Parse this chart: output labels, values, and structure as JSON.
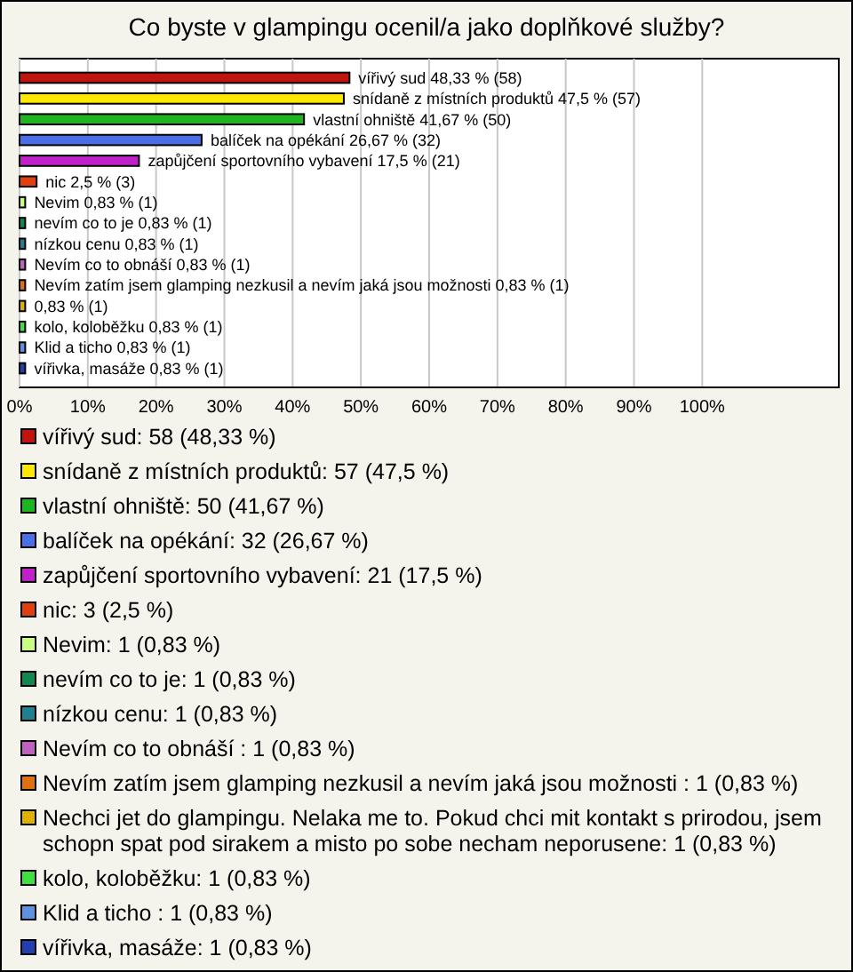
{
  "chart_data": {
    "type": "bar",
    "orientation": "horizontal",
    "stacked": true,
    "title": "Co byste v glampingu ocenil/a jako doplňkové služby?",
    "categories": [
      null,
      null,
      null,
      null,
      null,
      null,
      null,
      null,
      null,
      null,
      null,
      null,
      null,
      null,
      null
    ],
    "series": [
      {
        "name": "vířivý sud: 58 (48,33 %)",
        "color": "#c0150f",
        "values": [
          48.33,
          null,
          null,
          null,
          null,
          null,
          null,
          null,
          null,
          null,
          null,
          null,
          null,
          null,
          null
        ],
        "value_labels": [
          "vířivý sud 48,33 % (58)",
          null,
          null,
          null,
          null,
          null,
          null,
          null,
          null,
          null,
          null,
          null,
          null,
          null,
          null
        ]
      },
      {
        "name": "snídaně z místních produktů: 57 (47,5 %)",
        "color": "#ffe800",
        "values": [
          null,
          47.5,
          null,
          null,
          null,
          null,
          null,
          null,
          null,
          null,
          null,
          null,
          null,
          null,
          null
        ],
        "value_labels": [
          null,
          "snídaně z místních produktů 47,5 % (57)",
          null,
          null,
          null,
          null,
          null,
          null,
          null,
          null,
          null,
          null,
          null,
          null,
          null
        ]
      },
      {
        "name": "vlastní ohniště: 50 (41,67 %)",
        "color": "#1eb51e",
        "values": [
          null,
          null,
          41.67,
          null,
          null,
          null,
          null,
          null,
          null,
          null,
          null,
          null,
          null,
          null,
          null
        ],
        "value_labels": [
          null,
          null,
          "vlastní ohniště 41,67 % (50)",
          null,
          null,
          null,
          null,
          null,
          null,
          null,
          null,
          null,
          null,
          null,
          null
        ]
      },
      {
        "name": "balíček na opékání: 32 (26,67 %)",
        "color": "#4a6ee8",
        "values": [
          null,
          null,
          null,
          26.67,
          null,
          null,
          null,
          null,
          null,
          null,
          null,
          null,
          null,
          null,
          null
        ],
        "value_labels": [
          null,
          null,
          null,
          "balíček na opékání 26,67 % (32)",
          null,
          null,
          null,
          null,
          null,
          null,
          null,
          null,
          null,
          null,
          null
        ]
      },
      {
        "name": "zapůjčení sportovního vybavení: 21 (17,5 %)",
        "color": "#c020c8",
        "values": [
          null,
          null,
          null,
          null,
          17.5,
          null,
          null,
          null,
          null,
          null,
          null,
          null,
          null,
          null,
          null
        ],
        "value_labels": [
          null,
          null,
          null,
          null,
          "zapůjčení sportovního vybavení 17,5 % (21)",
          null,
          null,
          null,
          null,
          null,
          null,
          null,
          null,
          null,
          null
        ]
      },
      {
        "name": "nic: 3 (2,5 %)",
        "color": "#e04010",
        "values": [
          null,
          null,
          null,
          null,
          null,
          2.5,
          null,
          null,
          null,
          null,
          null,
          null,
          null,
          null,
          null
        ],
        "value_labels": [
          null,
          null,
          null,
          null,
          null,
          "nic 2,5 % (3)",
          null,
          null,
          null,
          null,
          null,
          null,
          null,
          null,
          null
        ]
      },
      {
        "name": "Nevim: 1 (0,83 %)",
        "color": "#c8ff80",
        "values": [
          null,
          null,
          null,
          null,
          null,
          null,
          0.83,
          null,
          null,
          null,
          null,
          null,
          null,
          null,
          null
        ],
        "value_labels": [
          null,
          null,
          null,
          null,
          null,
          null,
          "Nevim 0,83 % (1)",
          null,
          null,
          null,
          null,
          null,
          null,
          null,
          null
        ]
      },
      {
        "name": "nevím co to je: 1 (0,83 %)",
        "color": "#108850",
        "values": [
          null,
          null,
          null,
          null,
          null,
          null,
          null,
          0.83,
          null,
          null,
          null,
          null,
          null,
          null,
          null
        ],
        "value_labels": [
          null,
          null,
          null,
          null,
          null,
          null,
          null,
          "nevím co to je 0,83 % (1)",
          null,
          null,
          null,
          null,
          null,
          null,
          null
        ]
      },
      {
        "name": "nízkou cenu: 1 (0,83 %)",
        "color": "#208090",
        "values": [
          null,
          null,
          null,
          null,
          null,
          null,
          null,
          null,
          0.83,
          null,
          null,
          null,
          null,
          null,
          null
        ],
        "value_labels": [
          null,
          null,
          null,
          null,
          null,
          null,
          null,
          null,
          "nízkou cenu 0,83 % (1)",
          null,
          null,
          null,
          null,
          null,
          null
        ]
      },
      {
        "name": "Nevím co to obnáší : 1 (0,83 %)",
        "color": "#c060c0",
        "values": [
          null,
          null,
          null,
          null,
          null,
          null,
          null,
          null,
          null,
          0.83,
          null,
          null,
          null,
          null,
          null
        ],
        "value_labels": [
          null,
          null,
          null,
          null,
          null,
          null,
          null,
          null,
          null,
          "Nevím co to obnáší  0,83 % (1)",
          null,
          null,
          null,
          null,
          null
        ]
      },
      {
        "name": "Nevím zatím jsem glamping nezkusil a nevím jaká jsou možnosti : 1 (0,83 %)",
        "color": "#e07010",
        "values": [
          null,
          null,
          null,
          null,
          null,
          null,
          null,
          null,
          null,
          null,
          0.83,
          null,
          null,
          null,
          null
        ],
        "value_labels": [
          null,
          null,
          null,
          null,
          null,
          null,
          null,
          null,
          null,
          null,
          "Nevím zatím jsem glamping nezkusil a nevím jaká jsou možnosti  0,83 % (1)",
          null,
          null,
          null,
          null
        ]
      },
      {
        "name": "Nechci jet do glampingu. Nelaka me to. Pokud chci mit kontakt s prirodou, jsem schopn spat pod sirakem a misto po sobe necham neporusene: 1 (0,83 %)",
        "color": "#e0b000",
        "values": [
          null,
          null,
          null,
          null,
          null,
          null,
          null,
          null,
          null,
          null,
          null,
          0.83,
          null,
          null,
          null
        ],
        "value_labels": [
          null,
          null,
          null,
          null,
          null,
          null,
          null,
          null,
          null,
          null,
          null,
          "0,83 % (1)",
          null,
          null,
          null
        ]
      },
      {
        "name": "kolo, koloběžku: 1 (0,83 %)",
        "color": "#40e040",
        "values": [
          null,
          null,
          null,
          null,
          null,
          null,
          null,
          null,
          null,
          null,
          null,
          null,
          0.83,
          null,
          null
        ],
        "value_labels": [
          null,
          null,
          null,
          null,
          null,
          null,
          null,
          null,
          null,
          null,
          null,
          null,
          "kolo, koloběžku 0,83 % (1)",
          null,
          null
        ]
      },
      {
        "name": "Klid a ticho : 1 (0,83 %)",
        "color": "#6090e0",
        "values": [
          null,
          null,
          null,
          null,
          null,
          null,
          null,
          null,
          null,
          null,
          null,
          null,
          null,
          0.83,
          null
        ],
        "value_labels": [
          null,
          null,
          null,
          null,
          null,
          null,
          null,
          null,
          null,
          null,
          null,
          null,
          null,
          "Klid a ticho  0,83 % (1)",
          null
        ]
      },
      {
        "name": "vířivka, masáže: 1 (0,83 %)",
        "color": "#2040b0",
        "values": [
          null,
          null,
          null,
          null,
          null,
          null,
          null,
          null,
          null,
          null,
          null,
          null,
          null,
          null,
          0.83
        ],
        "value_labels": [
          null,
          null,
          null,
          null,
          null,
          null,
          null,
          null,
          null,
          null,
          null,
          null,
          null,
          null,
          "vířivka, masáže 0,83 % (1)"
        ]
      }
    ],
    "xlim": [
      0,
      120
    ],
    "xticks": [
      {
        "value": 0,
        "label": "0%"
      },
      {
        "value": 10,
        "label": "10%"
      },
      {
        "value": 20,
        "label": "20%"
      },
      {
        "value": 30,
        "label": "30%"
      },
      {
        "value": 40,
        "label": "40%"
      },
      {
        "value": 50,
        "label": "50%"
      },
      {
        "value": 60,
        "label": "60%"
      },
      {
        "value": 70,
        "label": "70%"
      },
      {
        "value": 80,
        "label": "80%"
      },
      {
        "value": 90,
        "label": "90%"
      },
      {
        "value": 100,
        "label": "100%"
      }
    ],
    "grid": "x",
    "legend": "bottom"
  }
}
